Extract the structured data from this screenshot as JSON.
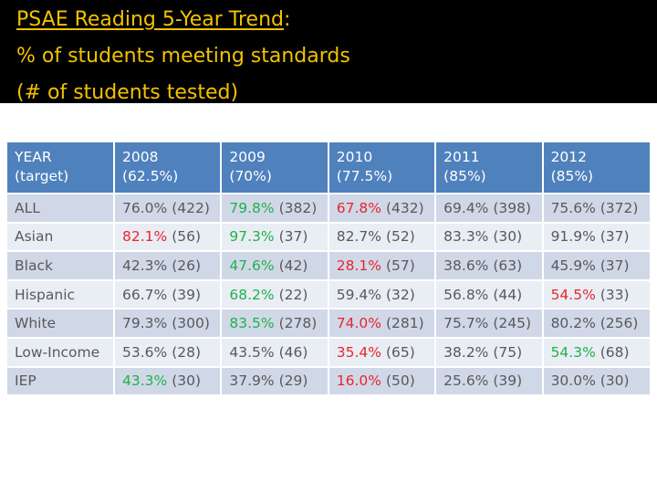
{
  "title": {
    "underlined": "PSAE Reading 5-Year Trend",
    "colon": ":",
    "line2": "% of students meeting standards",
    "line3": "(# of students tested)"
  },
  "colors": {
    "title_band": "#000000",
    "title_text": "#f2c200",
    "header_bg": "#4f81bd",
    "row_odd_bg": "#d0d8e8",
    "row_even_bg": "#e9edf4",
    "red": "#e8262c",
    "green": "#1fb247"
  },
  "table": {
    "headers": [
      {
        "line1": "YEAR",
        "line2": "(target)"
      },
      {
        "line1": "2008",
        "line2": "(62.5%)"
      },
      {
        "line1": "2009",
        "line2": "(70%)"
      },
      {
        "line1": "2010",
        "line2": "(77.5%)"
      },
      {
        "line1": "2011",
        "line2": "(85%)"
      },
      {
        "line1": "2012",
        "line2": "(85%)"
      }
    ],
    "rows": [
      {
        "label": "ALL",
        "cells": [
          {
            "pct": "76.0%",
            "n": "(422)",
            "color": "gray"
          },
          {
            "pct": "79.8%",
            "n": "(382)",
            "color": "green"
          },
          {
            "pct": "67.8%",
            "n": "(432)",
            "color": "red"
          },
          {
            "pct": "69.4%",
            "n": "(398)",
            "color": "gray"
          },
          {
            "pct": "75.6%",
            "n": "(372)",
            "color": "gray"
          }
        ]
      },
      {
        "label": "Asian",
        "cells": [
          {
            "pct": "82.1%",
            "n": "(56)",
            "color": "red"
          },
          {
            "pct": "97.3%",
            "n": "(37)",
            "color": "green"
          },
          {
            "pct": "82.7%",
            "n": "(52)",
            "color": "gray"
          },
          {
            "pct": "83.3%",
            "n": "(30)",
            "color": "gray"
          },
          {
            "pct": "91.9%",
            "n": "(37)",
            "color": "gray"
          }
        ]
      },
      {
        "label": "Black",
        "cells": [
          {
            "pct": "42.3%",
            "n": "(26)",
            "color": "gray"
          },
          {
            "pct": "47.6%",
            "n": "(42)",
            "color": "green"
          },
          {
            "pct": "28.1%",
            "n": "(57)",
            "color": "red"
          },
          {
            "pct": "38.6%",
            "n": "(63)",
            "color": "gray"
          },
          {
            "pct": "45.9%",
            "n": "(37)",
            "color": "gray"
          }
        ]
      },
      {
        "label": "Hispanic",
        "cells": [
          {
            "pct": "66.7%",
            "n": "(39)",
            "color": "gray"
          },
          {
            "pct": "68.2%",
            "n": "(22)",
            "color": "green"
          },
          {
            "pct": "59.4%",
            "n": "(32)",
            "color": "gray"
          },
          {
            "pct": "56.8%",
            "n": "(44)",
            "color": "gray"
          },
          {
            "pct": "54.5%",
            "n": "(33)",
            "color": "red"
          }
        ]
      },
      {
        "label": "White",
        "cells": [
          {
            "pct": "79.3%",
            "n": "(300)",
            "color": "gray"
          },
          {
            "pct": "83.5%",
            "n": "(278)",
            "color": "green"
          },
          {
            "pct": "74.0%",
            "n": "(281)",
            "color": "red"
          },
          {
            "pct": "75.7%",
            "n": "(245)",
            "color": "gray"
          },
          {
            "pct": "80.2%",
            "n": "(256)",
            "color": "gray"
          }
        ]
      },
      {
        "label": "Low-Income",
        "cells": [
          {
            "pct": "53.6%",
            "n": "(28)",
            "color": "gray"
          },
          {
            "pct": "43.5%",
            "n": "(46)",
            "color": "gray"
          },
          {
            "pct": "35.4%",
            "n": "(65)",
            "color": "red"
          },
          {
            "pct": "38.2%",
            "n": "(75)",
            "color": "gray"
          },
          {
            "pct": "54.3%",
            "n": "(68)",
            "color": "green"
          }
        ]
      },
      {
        "label": "IEP",
        "cells": [
          {
            "pct": "43.3%",
            "n": "(30)",
            "color": "green"
          },
          {
            "pct": "37.9%",
            "n": "(29)",
            "color": "gray"
          },
          {
            "pct": "16.0%",
            "n": "(50)",
            "color": "red"
          },
          {
            "pct": "25.6%",
            "n": "(39)",
            "color": "gray"
          },
          {
            "pct": "30.0%",
            "n": "(30)",
            "color": "gray"
          }
        ]
      }
    ]
  }
}
